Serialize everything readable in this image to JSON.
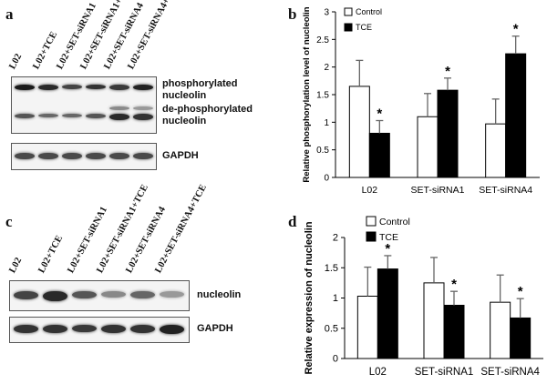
{
  "panel_letters": {
    "a": "a",
    "b": "b",
    "c": "c",
    "d": "d"
  },
  "lanes": [
    "L02",
    "L02+TCE",
    "L02+SET-siRNA1",
    "L02+SET-siRNA1+TCE",
    "L02+SET-siRNA4",
    "L02+SET-siRNA4+TCE"
  ],
  "blot_a": {
    "label_phospho_1": "phosphorylated",
    "label_phospho_2": "nucleolin",
    "label_dephospho_1": "de-phosphorylated",
    "label_dephospho_2": "nucleolin",
    "label_gapdh": "GAPDH"
  },
  "blot_c": {
    "label_nucleolin": "nucleolin",
    "label_gapdh": "GAPDH"
  },
  "chart_data": [
    {
      "type": "bar",
      "panel": "b",
      "categories": [
        "L02",
        "SET-siRNA1",
        "SET-siRNA4"
      ],
      "series": [
        {
          "name": "Control",
          "values": [
            1.65,
            1.1,
            0.97
          ],
          "errors": [
            0.47,
            0.42,
            0.45
          ],
          "color": "#ffffff"
        },
        {
          "name": "TCE",
          "values": [
            0.8,
            1.58,
            2.24
          ],
          "errors": [
            0.23,
            0.22,
            0.32
          ],
          "color": "#000000"
        }
      ],
      "significance": [
        [
          false,
          true
        ],
        [
          false,
          true
        ],
        [
          false,
          true
        ]
      ],
      "significance_mark": "*",
      "ylabel": "Relative phosphorylation level of nucleolin",
      "ylim": [
        0,
        3
      ],
      "yticks": [
        "0",
        "0.5",
        "1",
        "1.5",
        "2",
        "2.5",
        "3"
      ],
      "legend": "top-left",
      "grid": false
    },
    {
      "type": "bar",
      "panel": "d",
      "categories": [
        "L02",
        "SET-siRNA1",
        "SET-siRNA4"
      ],
      "series": [
        {
          "name": "Control",
          "values": [
            1.03,
            1.25,
            0.93
          ],
          "errors": [
            0.48,
            0.42,
            0.45
          ],
          "color": "#ffffff"
        },
        {
          "name": "TCE",
          "values": [
            1.48,
            0.88,
            0.67
          ],
          "errors": [
            0.22,
            0.23,
            0.32
          ],
          "color": "#000000"
        }
      ],
      "significance": [
        [
          false,
          true
        ],
        [
          false,
          true
        ],
        [
          false,
          true
        ]
      ],
      "significance_mark": "*",
      "ylabel": "Relative expression of nucleolin",
      "ylim": [
        0,
        2
      ],
      "yticks": [
        "0",
        "0.5",
        "1",
        "1.5",
        "2"
      ],
      "legend": "top-left",
      "grid": false
    }
  ]
}
